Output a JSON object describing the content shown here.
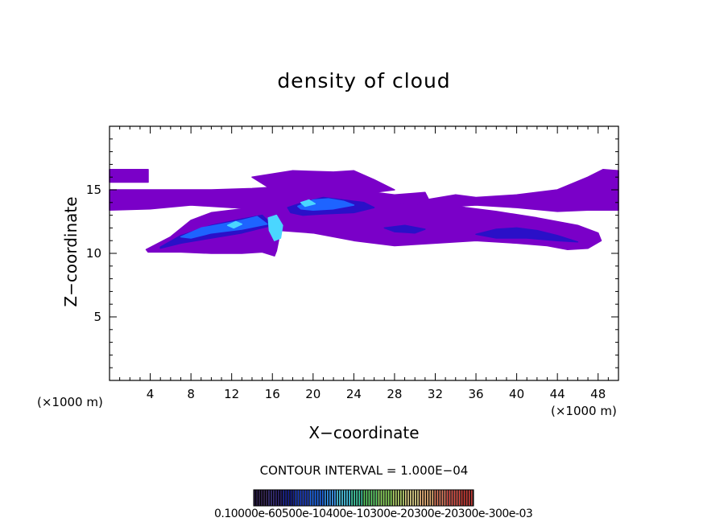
{
  "chart_data": {
    "type": "heatmap",
    "title": "density of cloud",
    "xlabel": "X−coordinate",
    "ylabel": "Z−coordinate",
    "x_unit_label_left": "(×1000 m)",
    "x_unit_label_right": "(×1000 m)",
    "xlim": [
      0,
      50
    ],
    "ylim": [
      0,
      20
    ],
    "x_ticks": [
      4,
      8,
      12,
      16,
      20,
      24,
      28,
      32,
      36,
      40,
      44,
      48
    ],
    "y_ticks": [
      5,
      10,
      15
    ],
    "contour_interval_text": "CONTOUR INTERVAL = 1.000E−04",
    "colorbar_labels_text": "0.10000e-60500e-10400e-10300e-20300e-20300e-300e-03",
    "colors": {
      "purple": "#7a00c8",
      "dark_blue": "#2a10c8",
      "blue": "#1e64ff",
      "cyan": "#4ad6ff"
    },
    "cloud_regions": [
      {
        "level": "purple",
        "x": [
          0,
          3.8,
          3.8,
          0
        ],
        "y": [
          16.6,
          16.6,
          15.6,
          15.6
        ]
      },
      {
        "level": "purple",
        "x": [
          0,
          4,
          10,
          14,
          18,
          20,
          24,
          28,
          31,
          31.5,
          24,
          18,
          12,
          8,
          4,
          0
        ],
        "y": [
          15.0,
          15.0,
          15.0,
          15.1,
          15.3,
          15.2,
          15.0,
          14.6,
          14.8,
          14.0,
          13.6,
          13.4,
          13.6,
          13.8,
          13.5,
          13.4
        ]
      },
      {
        "level": "purple",
        "x": [
          14,
          18,
          22,
          24,
          26,
          28,
          24,
          20,
          16
        ],
        "y": [
          16.0,
          16.5,
          16.4,
          16.5,
          15.8,
          15.0,
          14.6,
          14.8,
          15.0
        ]
      },
      {
        "level": "purple",
        "x": [
          3.6,
          6,
          8,
          10,
          12,
          14,
          16,
          18,
          20,
          24,
          28,
          32,
          35,
          38,
          42,
          46,
          48,
          48.3,
          47,
          45,
          43,
          40,
          36,
          32,
          28,
          24,
          20,
          16.8,
          16.4,
          16.2,
          15,
          13,
          10,
          7,
          5,
          3.8
        ],
        "y": [
          10.3,
          11.3,
          12.6,
          13.2,
          13.4,
          13.6,
          14.0,
          14.5,
          14.6,
          14.4,
          13.8,
          14.0,
          13.6,
          13.3,
          12.8,
          12.2,
          11.6,
          11.0,
          10.4,
          10.3,
          10.6,
          10.8,
          11.0,
          10.8,
          10.6,
          11.0,
          11.6,
          11.8,
          10.2,
          9.8,
          10.1,
          10.0,
          10.0,
          10.1,
          10.1,
          10.1
        ]
      },
      {
        "level": "purple",
        "x": [
          31,
          34,
          36,
          40,
          44,
          47,
          48.5,
          50,
          50,
          47,
          44,
          40,
          36,
          32,
          30
        ],
        "y": [
          14.2,
          14.6,
          14.4,
          14.6,
          15.0,
          16.0,
          16.6,
          16.5,
          13.4,
          13.4,
          13.3,
          13.6,
          13.8,
          13.6,
          13.8
        ]
      },
      {
        "level": "dark_blue",
        "x": [
          5,
          7,
          10,
          13,
          15,
          16,
          13,
          10,
          7,
          5
        ],
        "y": [
          10.5,
          11.4,
          12.2,
          12.7,
          13.0,
          12.2,
          11.6,
          11.2,
          10.8,
          10.4
        ]
      },
      {
        "level": "dark_blue",
        "x": [
          17.5,
          19,
          21,
          23,
          25,
          26,
          24,
          21,
          19,
          17.8
        ],
        "y": [
          13.6,
          14.0,
          14.4,
          14.2,
          14.0,
          13.6,
          13.2,
          13.1,
          13.0,
          13.2
        ]
      },
      {
        "level": "dark_blue",
        "x": [
          36,
          38,
          40,
          42,
          44,
          46,
          44,
          41,
          38
        ],
        "y": [
          11.5,
          11.9,
          12.0,
          11.8,
          11.4,
          10.9,
          11.0,
          11.2,
          11.2
        ]
      },
      {
        "level": "dark_blue",
        "x": [
          27,
          29,
          31,
          30,
          28
        ],
        "y": [
          12.0,
          12.2,
          11.9,
          11.6,
          11.7
        ]
      },
      {
        "level": "blue",
        "x": [
          7,
          9,
          11,
          13,
          14.5,
          15.5,
          13,
          10,
          8
        ],
        "y": [
          11.3,
          12.0,
          12.3,
          12.6,
          12.9,
          12.3,
          11.9,
          11.6,
          11.2
        ]
      },
      {
        "level": "blue",
        "x": [
          18.5,
          20,
          21.5,
          23,
          24,
          22,
          20,
          18.8
        ],
        "y": [
          13.7,
          14.2,
          14.3,
          14.1,
          13.8,
          13.5,
          13.4,
          13.5
        ]
      },
      {
        "level": "cyan",
        "x": [
          15.6,
          16.4,
          17.0,
          16.8,
          16.2,
          15.7
        ],
        "y": [
          12.8,
          13.0,
          12.2,
          11.2,
          11.0,
          11.8
        ]
      },
      {
        "level": "cyan",
        "x": [
          11.6,
          12.4,
          13.0,
          12.2
        ],
        "y": [
          12.2,
          12.5,
          12.3,
          12.0
        ]
      },
      {
        "level": "cyan",
        "x": [
          18.8,
          19.6,
          20.2,
          19.2
        ],
        "y": [
          14.0,
          14.2,
          13.9,
          13.7
        ]
      }
    ],
    "colorbar_colors": [
      "#1a0a3a",
      "#1e1460",
      "#141e90",
      "#1438c0",
      "#1a64e6",
      "#2a90f0",
      "#34b8d8",
      "#3cc8a0",
      "#5ad264",
      "#8ad65a",
      "#b6d66a",
      "#d4c878",
      "#e0a86e",
      "#e07a5c",
      "#d84e44",
      "#c83a34"
    ]
  }
}
